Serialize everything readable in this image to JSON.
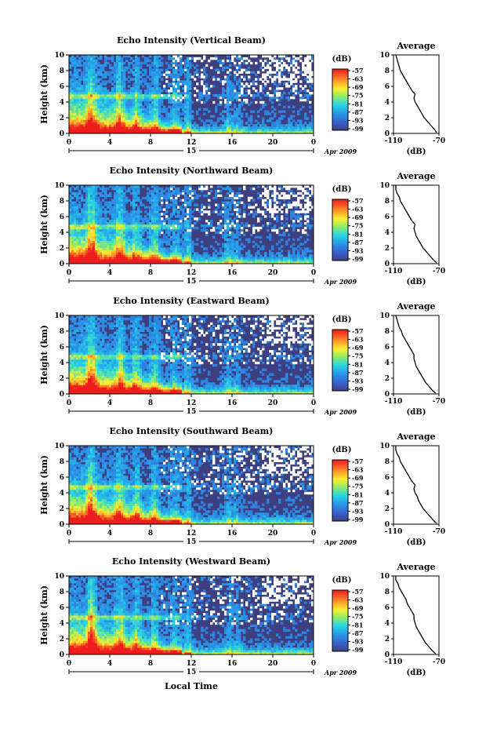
{
  "figure": {
    "xlabel": "Local Time",
    "date_label": "Apr 2009",
    "date_tick_label": "15"
  },
  "chart_data": [
    {
      "type": "heatmap",
      "title": "Echo Intensity (Vertical Beam)",
      "ylabel": "Height (km)",
      "xlabel": "Local Time",
      "x_ticks": [
        "0",
        "4",
        "8",
        "12",
        "16",
        "20",
        "0"
      ],
      "y_ticks": [
        "0",
        "2",
        "4",
        "6",
        "8",
        "10"
      ],
      "xlim": [
        0,
        24
      ],
      "ylim": [
        0,
        10
      ],
      "colorbar_label": "(dB)",
      "colorbar_ticks": [
        "-57",
        "-63",
        "-69",
        "-75",
        "-81",
        "-87",
        "-93",
        "-99"
      ],
      "profile": {
        "title": "Average",
        "xlabel": "(dB)",
        "x_ticks": [
          "-110",
          "-70"
        ],
        "y_ticks": [
          "0",
          "2",
          "4",
          "6",
          "8",
          "10"
        ],
        "xlim": [
          -110,
          -70
        ],
        "ylim": [
          0,
          10
        ],
        "height_km": [
          0.1,
          0.5,
          1.0,
          1.5,
          2.0,
          2.5,
          3.0,
          3.5,
          4.0,
          4.5,
          5.0,
          5.5,
          6.0,
          6.5,
          7.0,
          7.5,
          8.0,
          8.5,
          9.0,
          9.5,
          10.0
        ],
        "values_db": [
          -72,
          -74,
          -77,
          -80,
          -83,
          -85,
          -87,
          -89,
          -91,
          -92,
          -91,
          -94,
          -96,
          -98,
          -100,
          -102,
          -104,
          -105,
          -106,
          -107,
          -108
        ]
      }
    },
    {
      "type": "heatmap",
      "title": "Echo Intensity (Northward Beam)",
      "ylabel": "Height (km)",
      "xlabel": "Local Time",
      "x_ticks": [
        "0",
        "4",
        "8",
        "12",
        "16",
        "20",
        "0"
      ],
      "y_ticks": [
        "0",
        "2",
        "4",
        "6",
        "8",
        "10"
      ],
      "xlim": [
        0,
        24
      ],
      "ylim": [
        0,
        10
      ],
      "colorbar_label": "(dB)",
      "colorbar_ticks": [
        "-57",
        "-63",
        "-69",
        "-75",
        "-81",
        "-87",
        "-93",
        "-99"
      ],
      "profile": {
        "title": "Average",
        "xlabel": "(dB)",
        "x_ticks": [
          "-110",
          "-70"
        ],
        "y_ticks": [
          "0",
          "2",
          "4",
          "6",
          "8",
          "10"
        ],
        "xlim": [
          -110,
          -70
        ],
        "ylim": [
          0,
          10
        ],
        "height_km": [
          0.1,
          0.5,
          1.0,
          1.5,
          2.0,
          2.5,
          3.0,
          3.5,
          4.0,
          4.5,
          5.0,
          5.5,
          6.0,
          6.5,
          7.0,
          7.5,
          8.0,
          8.5,
          9.0,
          9.5,
          10.0
        ],
        "values_db": [
          -72,
          -75,
          -78,
          -81,
          -84,
          -86,
          -88,
          -90,
          -91,
          -92,
          -91,
          -94,
          -96,
          -98,
          -100,
          -102,
          -104,
          -105,
          -107,
          -108,
          -108
        ]
      }
    },
    {
      "type": "heatmap",
      "title": "Echo Intensity (Eastward Beam)",
      "ylabel": "Height (km)",
      "xlabel": "Local Time",
      "x_ticks": [
        "0",
        "4",
        "8",
        "12",
        "16",
        "20",
        "0"
      ],
      "y_ticks": [
        "0",
        "2",
        "4",
        "6",
        "8",
        "10"
      ],
      "xlim": [
        0,
        24
      ],
      "ylim": [
        0,
        10
      ],
      "colorbar_label": "(dB)",
      "colorbar_ticks": [
        "-57",
        "-63",
        "-69",
        "-75",
        "-81",
        "-87",
        "-93",
        "-99"
      ],
      "profile": {
        "title": "Average",
        "xlabel": "(dB)",
        "x_ticks": [
          "-110",
          "-70"
        ],
        "y_ticks": [
          "0",
          "2",
          "4",
          "6",
          "8",
          "10"
        ],
        "xlim": [
          -110,
          -70
        ],
        "ylim": [
          0,
          10
        ],
        "height_km": [
          0.1,
          0.5,
          1.0,
          1.5,
          2.0,
          2.5,
          3.0,
          3.5,
          4.0,
          4.5,
          5.0,
          5.5,
          6.0,
          6.5,
          7.0,
          7.5,
          8.0,
          8.5,
          9.0,
          9.5,
          10.0
        ],
        "values_db": [
          -73,
          -76,
          -79,
          -82,
          -84,
          -86,
          -88,
          -90,
          -91,
          -92,
          -92,
          -94,
          -96,
          -98,
          -100,
          -102,
          -103,
          -105,
          -106,
          -107,
          -108
        ]
      }
    },
    {
      "type": "heatmap",
      "title": "Echo Intensity (Southward Beam)",
      "ylabel": "Height (km)",
      "xlabel": "Local Time",
      "x_ticks": [
        "0",
        "4",
        "8",
        "12",
        "16",
        "20",
        "0"
      ],
      "y_ticks": [
        "0",
        "2",
        "4",
        "6",
        "8",
        "10"
      ],
      "xlim": [
        0,
        24
      ],
      "ylim": [
        0,
        10
      ],
      "colorbar_label": "(dB)",
      "colorbar_ticks": [
        "-57",
        "-63",
        "-69",
        "-75",
        "-81",
        "-87",
        "-93",
        "-99"
      ],
      "profile": {
        "title": "Average",
        "xlabel": "(dB)",
        "x_ticks": [
          "-110",
          "-70"
        ],
        "y_ticks": [
          "0",
          "2",
          "4",
          "6",
          "8",
          "10"
        ],
        "xlim": [
          -110,
          -70
        ],
        "ylim": [
          0,
          10
        ],
        "height_km": [
          0.1,
          0.5,
          1.0,
          1.5,
          2.0,
          2.5,
          3.0,
          3.5,
          4.0,
          4.5,
          5.0,
          5.5,
          6.0,
          6.5,
          7.0,
          7.5,
          8.0,
          8.5,
          9.0,
          9.5,
          10.0
        ],
        "values_db": [
          -72,
          -75,
          -78,
          -81,
          -84,
          -86,
          -88,
          -89,
          -91,
          -92,
          -91,
          -94,
          -96,
          -98,
          -100,
          -102,
          -104,
          -105,
          -107,
          -108,
          -108
        ]
      }
    },
    {
      "type": "heatmap",
      "title": "Echo Intensity (Westward Beam)",
      "ylabel": "Height (km)",
      "xlabel": "Local Time",
      "x_ticks": [
        "0",
        "4",
        "8",
        "12",
        "16",
        "20",
        "0"
      ],
      "y_ticks": [
        "0",
        "2",
        "4",
        "6",
        "8",
        "10"
      ],
      "xlim": [
        0,
        24
      ],
      "ylim": [
        0,
        10
      ],
      "colorbar_label": "(dB)",
      "colorbar_ticks": [
        "-57",
        "-63",
        "-69",
        "-75",
        "-81",
        "-87",
        "-93",
        "-99"
      ],
      "profile": {
        "title": "Average",
        "xlabel": "(dB)",
        "x_ticks": [
          "-110",
          "-70"
        ],
        "y_ticks": [
          "0",
          "2",
          "4",
          "6",
          "8",
          "10"
        ],
        "xlim": [
          -110,
          -70
        ],
        "ylim": [
          0,
          10
        ],
        "height_km": [
          0.1,
          0.5,
          1.0,
          1.5,
          2.0,
          2.5,
          3.0,
          3.5,
          4.0,
          4.5,
          5.0,
          5.5,
          6.0,
          6.5,
          7.0,
          7.5,
          8.0,
          8.5,
          9.0,
          9.5,
          10.0
        ],
        "values_db": [
          -73,
          -76,
          -79,
          -82,
          -84,
          -86,
          -88,
          -90,
          -91,
          -92,
          -92,
          -94,
          -96,
          -98,
          -99,
          -101,
          -103,
          -105,
          -106,
          -108,
          -108
        ]
      }
    }
  ]
}
